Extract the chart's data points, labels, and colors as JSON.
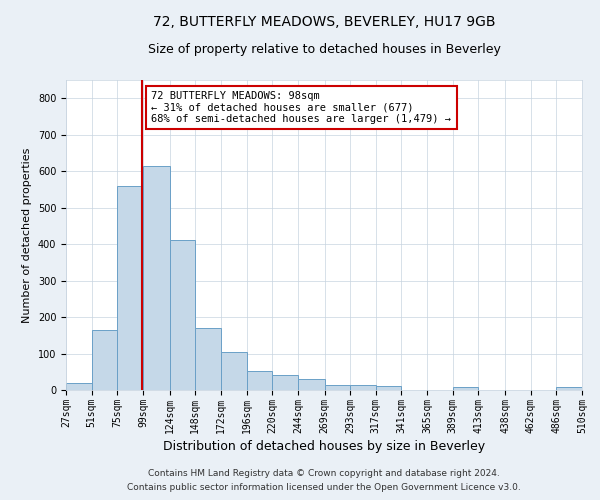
{
  "title": "72, BUTTERFLY MEADOWS, BEVERLEY, HU17 9GB",
  "subtitle": "Size of property relative to detached houses in Beverley",
  "xlabel": "Distribution of detached houses by size in Beverley",
  "ylabel": "Number of detached properties",
  "bin_labels": [
    "27sqm",
    "51sqm",
    "75sqm",
    "99sqm",
    "124sqm",
    "148sqm",
    "172sqm",
    "196sqm",
    "220sqm",
    "244sqm",
    "269sqm",
    "293sqm",
    "317sqm",
    "341sqm",
    "365sqm",
    "389sqm",
    "413sqm",
    "438sqm",
    "462sqm",
    "486sqm",
    "510sqm"
  ],
  "bin_edges": [
    27,
    51,
    75,
    99,
    124,
    148,
    172,
    196,
    220,
    244,
    269,
    293,
    317,
    341,
    365,
    389,
    413,
    438,
    462,
    486,
    510
  ],
  "bar_heights": [
    20,
    165,
    560,
    615,
    410,
    170,
    105,
    52,
    40,
    30,
    15,
    13,
    10,
    0,
    0,
    8,
    0,
    0,
    0,
    8
  ],
  "bar_color": "#c5d8e8",
  "bar_edge_color": "#6aa0c7",
  "property_line_x": 98,
  "property_line_color": "#cc0000",
  "annotation_line1": "72 BUTTERFLY MEADOWS: 98sqm",
  "annotation_line2": "← 31% of detached houses are smaller (677)",
  "annotation_line3": "68% of semi-detached houses are larger (1,479) →",
  "annotation_box_color": "#cc0000",
  "ylim": [
    0,
    850
  ],
  "yticks": [
    0,
    100,
    200,
    300,
    400,
    500,
    600,
    700,
    800
  ],
  "footer_line1": "Contains HM Land Registry data © Crown copyright and database right 2024.",
  "footer_line2": "Contains public sector information licensed under the Open Government Licence v3.0.",
  "bg_color": "#eaf0f6",
  "plot_bg_color": "#ffffff",
  "grid_color": "#c8d4e0",
  "title_fontsize": 10,
  "subtitle_fontsize": 9,
  "xlabel_fontsize": 9,
  "ylabel_fontsize": 8,
  "tick_fontsize": 7,
  "annotation_fontsize": 7.5,
  "footer_fontsize": 6.5
}
